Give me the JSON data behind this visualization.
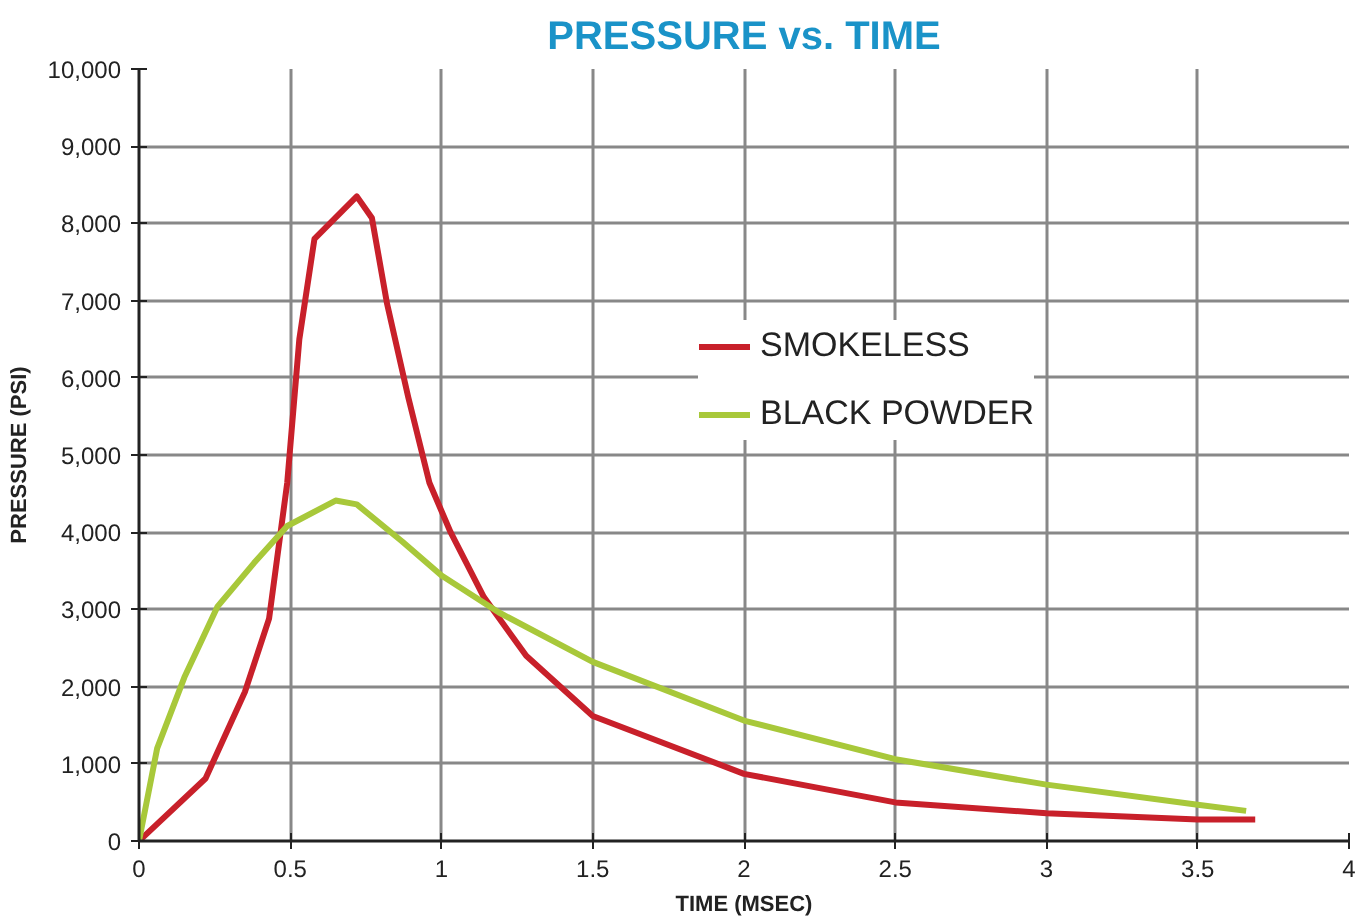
{
  "chart_data": {
    "type": "line",
    "title": "PRESSURE vs. TIME",
    "xlabel": "TIME (MSEC)",
    "ylabel": "PRESSURE (PSI)",
    "series": [
      {
        "name": "SMOKELESS",
        "color": "#c8202a",
        "x": [
          0,
          0.22,
          0.35,
          0.43,
          0.49,
          0.53,
          0.58,
          0.72,
          0.77,
          0.82,
          0.89,
          0.96,
          1.03,
          1.14,
          1.28,
          1.5,
          2,
          2.5,
          3,
          3.5,
          3.69
        ],
        "values": [
          0,
          810,
          1930,
          2880,
          4640,
          6500,
          7800,
          8350,
          8070,
          6960,
          5750,
          4640,
          4000,
          3160,
          2400,
          1620,
          870,
          500,
          360,
          280,
          280
        ]
      },
      {
        "name": "BLACK POWDER",
        "color": "#a8c83a",
        "x": [
          0,
          0.06,
          0.15,
          0.26,
          0.38,
          0.49,
          0.65,
          0.72,
          0.87,
          1.0,
          1.19,
          1.5,
          2,
          2.5,
          3,
          3.5,
          3.66
        ],
        "values": [
          0,
          1200,
          2120,
          3040,
          3600,
          4080,
          4410,
          4360,
          3880,
          3440,
          2960,
          2320,
          1560,
          1060,
          730,
          470,
          390
        ]
      }
    ],
    "xlim": [
      0,
      4
    ],
    "ylim": [
      0,
      10000
    ],
    "xticks": [
      0,
      0.5,
      1,
      1.5,
      2,
      2.5,
      3,
      3.5,
      4
    ],
    "yticks": [
      0,
      {
        "value": 1000,
        "label": "1,000"
      },
      {
        "value": 2000,
        "label": "2,000"
      },
      {
        "value": 3000,
        "label": "3,000"
      },
      {
        "value": 4000,
        "label": "4,000"
      },
      {
        "value": 5000,
        "label": "5,000"
      },
      {
        "value": 6000,
        "label": "6,000"
      },
      {
        "value": 7000,
        "label": "7,000"
      },
      {
        "value": 8000,
        "label": "8,000"
      },
      {
        "value": 9000,
        "label": "9,000"
      },
      {
        "value": 10000,
        "label": "10,000"
      }
    ],
    "grid": true,
    "legend": "top right",
    "marker": "none",
    "line_style": "solid"
  }
}
